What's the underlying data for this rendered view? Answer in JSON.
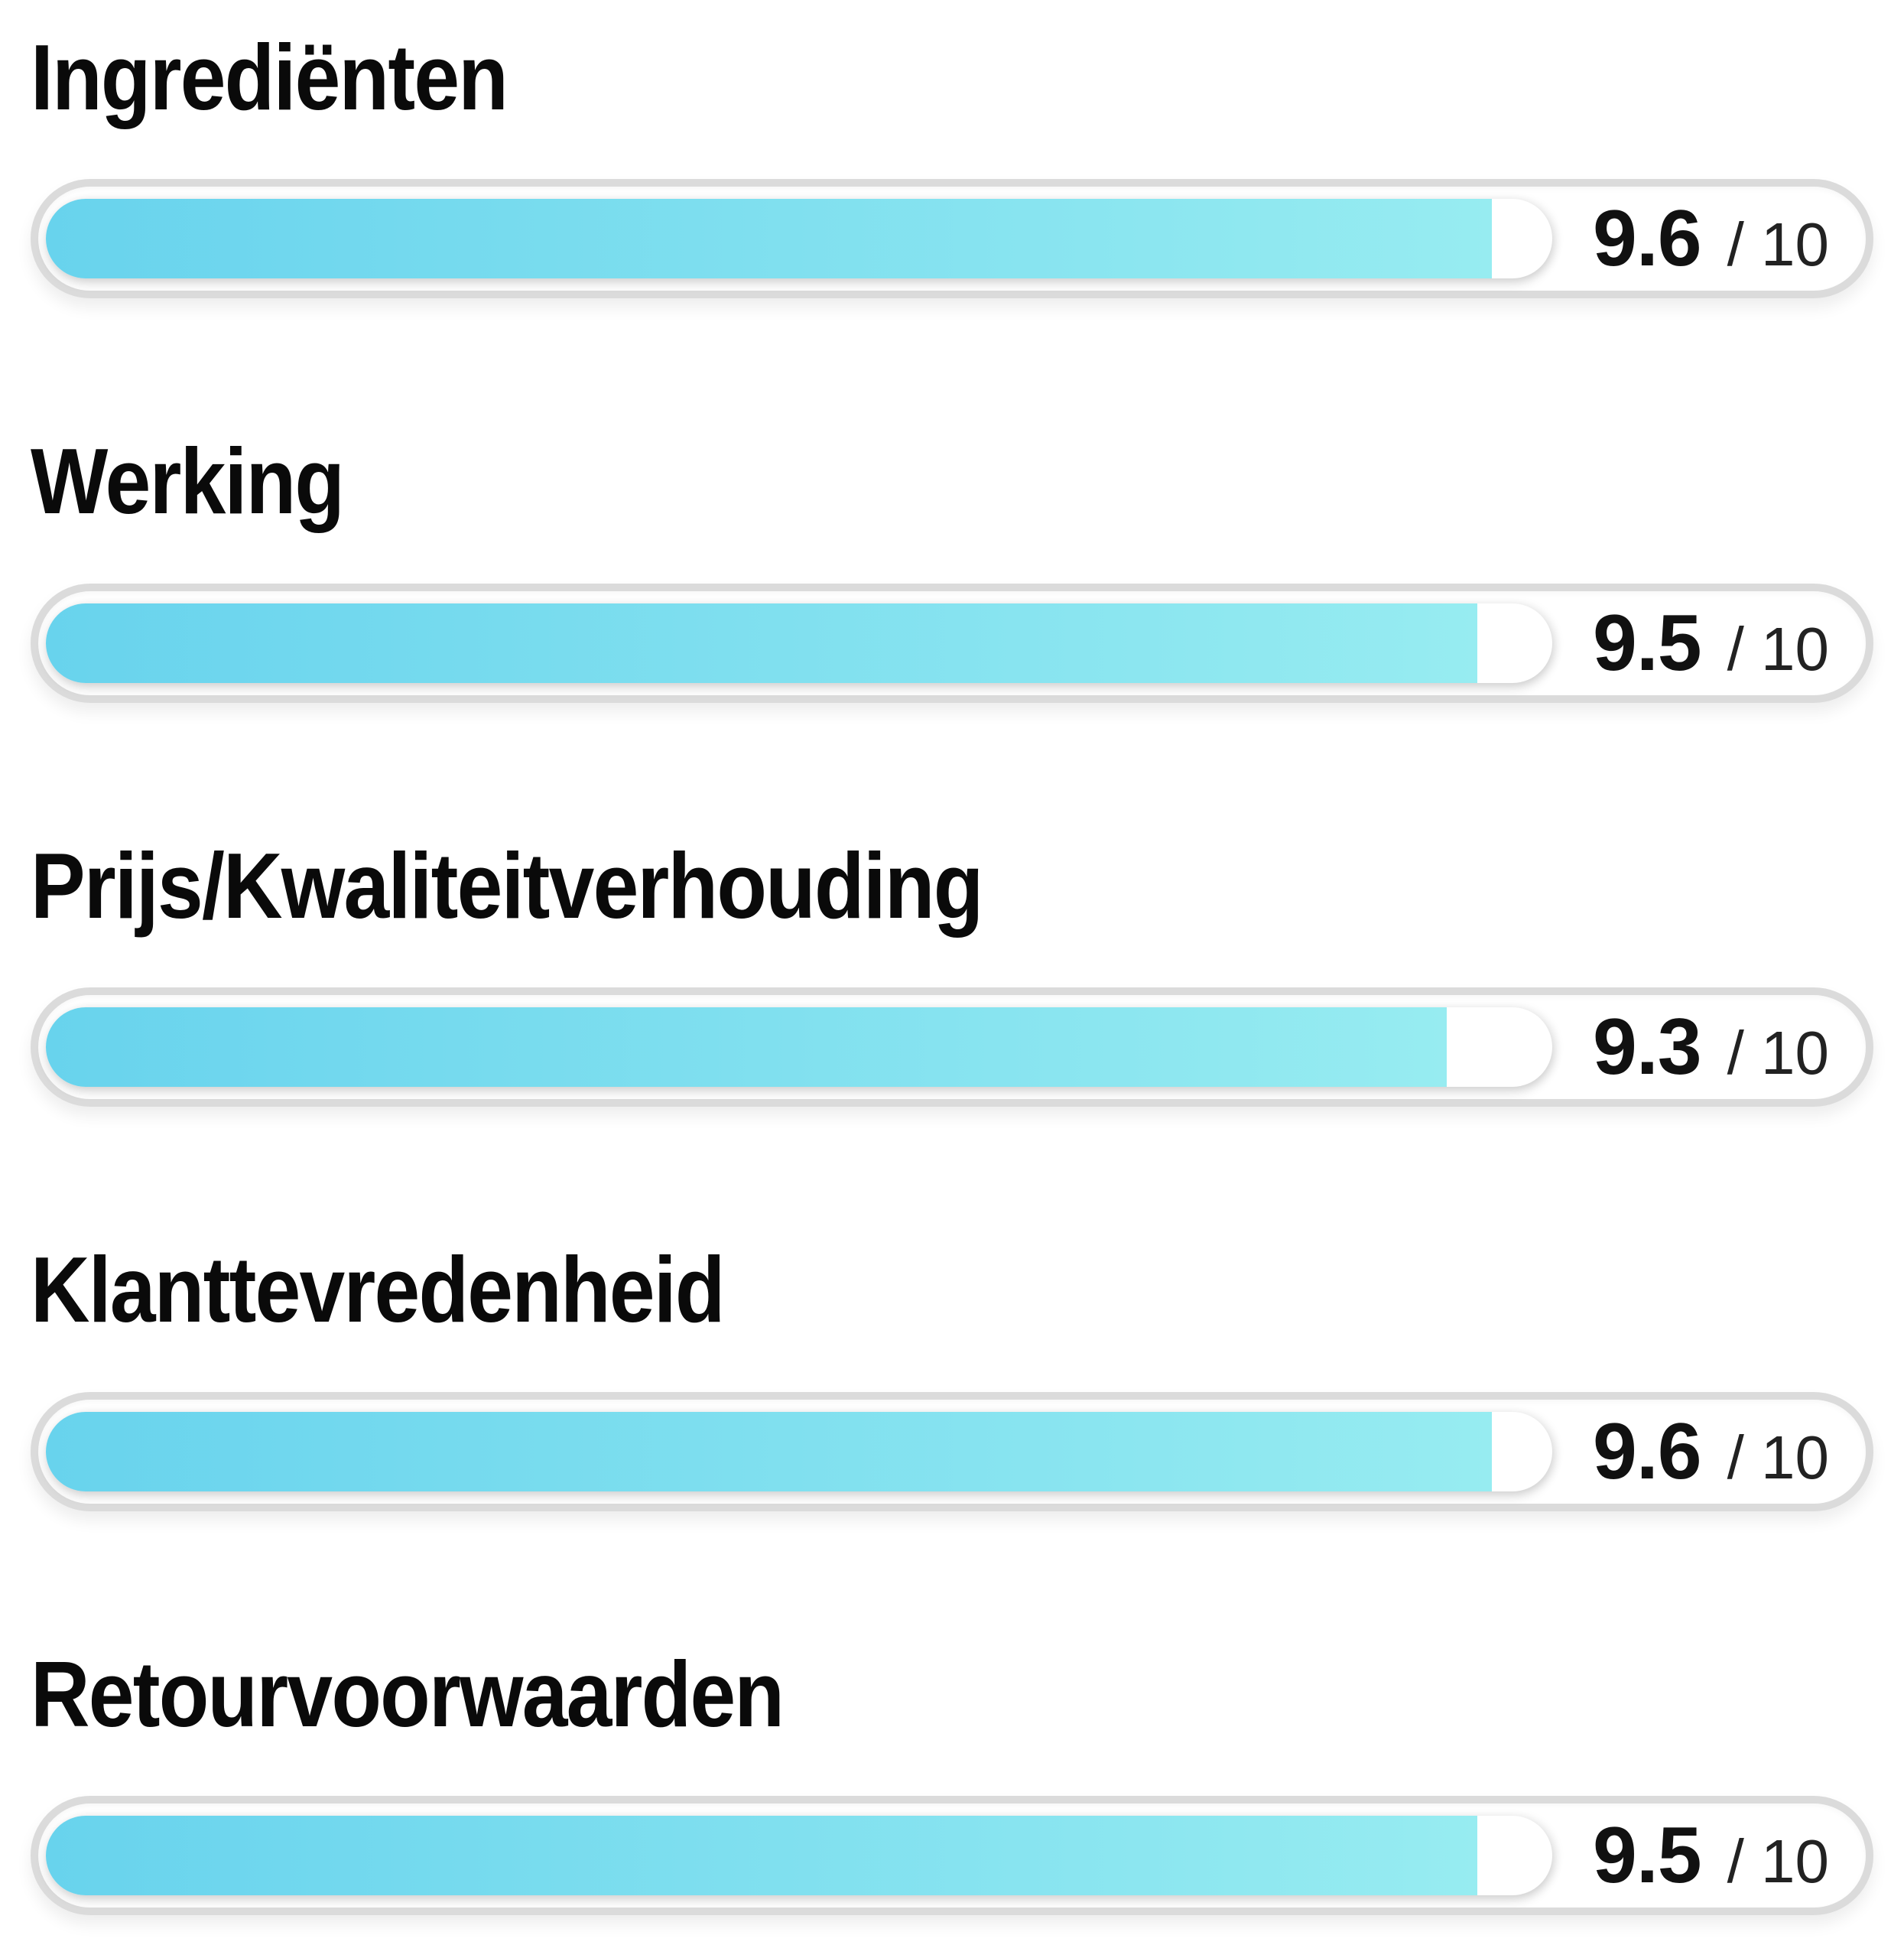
{
  "page": {
    "background": "#ffffff"
  },
  "colors": {
    "fill-start": "#68d3ed",
    "fill-end": "#97ecf1",
    "border": "#dbdbdb",
    "score": "#111111",
    "score-max": "#222222"
  },
  "ratings": {
    "max_label": "/ 10",
    "items": [
      {
        "label": "Ingrediënten",
        "score": "9.6",
        "value": 9.6
      },
      {
        "label": "Werking",
        "score": "9.5",
        "value": 9.5
      },
      {
        "label": "Prijs/Kwaliteitverhouding",
        "score": "9.3",
        "value": 9.3
      },
      {
        "label": "Klanttevredenheid",
        "score": "9.6",
        "value": 9.6
      },
      {
        "label": "Retourvoorwaarden",
        "score": "9.5",
        "value": 9.5
      }
    ]
  },
  "chart_data": {
    "type": "bar",
    "orientation": "horizontal",
    "categories": [
      "Ingrediënten",
      "Werking",
      "Prijs/Kwaliteitverhouding",
      "Klanttevredenheid",
      "Retourvoorwaarden"
    ],
    "values": [
      9.6,
      9.5,
      9.3,
      9.6,
      9.5
    ],
    "xlim": [
      0,
      10
    ],
    "unit": "/ 10"
  }
}
